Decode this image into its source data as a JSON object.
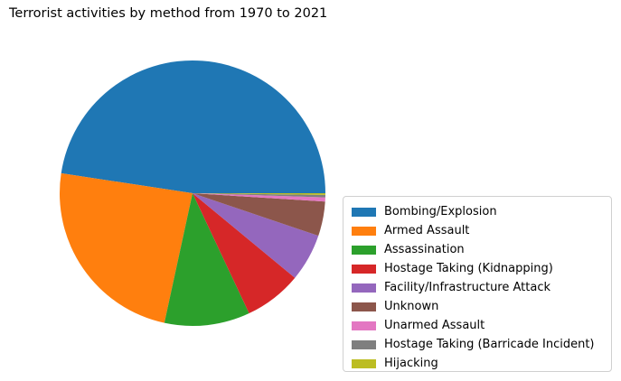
{
  "chart_data": {
    "type": "pie",
    "title": "Terrorist activities by method from 1970 to 2021",
    "categories": [
      "Bombing/Explosion",
      "Armed Assault",
      "Assassination",
      "Hostage Taking (Kidnapping)",
      "Facility/Infrastructure Attack",
      "Unknown",
      "Unarmed Assault",
      "Hostage Taking (Barricade Incident)",
      "Hijacking"
    ],
    "values": [
      47.6,
      24.0,
      10.4,
      7.0,
      5.8,
      4.2,
      0.5,
      0.3,
      0.2
    ],
    "colors": [
      "#1f77b4",
      "#ff7f0e",
      "#2ca02c",
      "#d62728",
      "#9467bd",
      "#8c564b",
      "#e377c2",
      "#7f7f7f",
      "#bcbd22"
    ],
    "start_angle_deg": 0,
    "direction": "counterclockwise",
    "legend_position": "lower-right-outside"
  }
}
